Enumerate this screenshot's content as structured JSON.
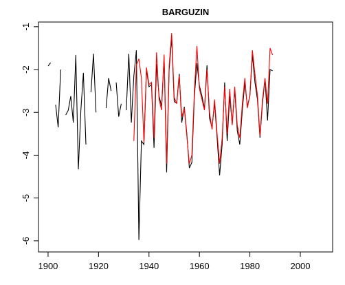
{
  "chart_data": {
    "type": "line",
    "title": "BARGUZIN",
    "x": [
      1900,
      1901,
      1902,
      1903,
      1904,
      1905,
      1906,
      1907,
      1908,
      1909,
      1910,
      1911,
      1912,
      1913,
      1914,
      1915,
      1916,
      1917,
      1918,
      1919,
      1920,
      1921,
      1922,
      1923,
      1924,
      1925,
      1926,
      1927,
      1928,
      1929,
      1930,
      1931,
      1932,
      1933,
      1934,
      1935,
      1936,
      1937,
      1938,
      1939,
      1940,
      1941,
      1942,
      1943,
      1944,
      1945,
      1946,
      1947,
      1948,
      1949,
      1950,
      1951,
      1952,
      1953,
      1954,
      1955,
      1956,
      1957,
      1958,
      1959,
      1960,
      1961,
      1962,
      1963,
      1964,
      1965,
      1966,
      1967,
      1968,
      1969,
      1970,
      1971,
      1972,
      1973,
      1974,
      1975,
      1976,
      1977,
      1978,
      1979,
      1980,
      1981,
      1982,
      1983,
      1984,
      1985,
      1986,
      1987,
      1988,
      1989
    ],
    "series": [
      {
        "color": "#000000",
        "values": [
          -1.92,
          -1.84,
          null,
          -2.82,
          -3.35,
          -2.0,
          null,
          -3.06,
          -2.95,
          -2.62,
          -3.24,
          -1.66,
          -4.33,
          -2.95,
          -2.08,
          -3.75,
          null,
          -2.53,
          -1.63,
          -3.0,
          null,
          null,
          null,
          -2.9,
          -2.2,
          -2.5,
          null,
          -2.3,
          -3.1,
          -2.8,
          null,
          -2.95,
          -1.63,
          -3.24,
          -2.15,
          -1.55,
          -5.98,
          -3.67,
          -3.75,
          -2.0,
          -2.4,
          -2.35,
          -3.83,
          -1.87,
          -2.62,
          -2.86,
          -1.7,
          -4.4,
          -2.0,
          -1.26,
          -2.75,
          -2.78,
          -2.1,
          -3.24,
          -2.87,
          -3.5,
          -4.3,
          -4.17,
          -2.62,
          -1.85,
          -2.38,
          -2.62,
          -2.91,
          -1.9,
          -3.14,
          -3.35,
          -2.78,
          -3.59,
          -4.47,
          -3.75,
          -2.3,
          -3.67,
          -2.62,
          -3.27,
          -2.46,
          -3.43,
          -3.75,
          -2.95,
          -2.3,
          -2.86,
          -2.62,
          -1.66,
          -2.3,
          -2.7,
          -3.59,
          -2.78,
          -2.22,
          -3.19,
          -2.0,
          -2.03
        ]
      },
      {
        "color": "#ff0000",
        "values": [
          null,
          null,
          null,
          null,
          null,
          null,
          null,
          null,
          null,
          null,
          null,
          null,
          null,
          null,
          null,
          null,
          null,
          null,
          null,
          null,
          null,
          null,
          null,
          null,
          null,
          null,
          null,
          null,
          null,
          null,
          null,
          null,
          null,
          null,
          -3.67,
          -1.9,
          -1.75,
          -2.2,
          -3.7,
          -1.95,
          -2.35,
          -2.3,
          -3.6,
          -1.6,
          -2.7,
          -2.95,
          -1.65,
          -4.2,
          -1.9,
          -1.15,
          -2.65,
          -2.8,
          -2.15,
          -3.1,
          -2.9,
          -3.55,
          -4.2,
          -4.0,
          -2.5,
          -1.45,
          -2.45,
          -2.7,
          -2.95,
          -2.0,
          -3.0,
          -3.4,
          -2.7,
          -3.5,
          -4.2,
          -3.6,
          -2.4,
          -3.5,
          -2.45,
          -3.3,
          -2.4,
          -3.3,
          -3.6,
          -2.8,
          -2.2,
          -2.9,
          -2.6,
          -1.55,
          -2.1,
          -2.6,
          -3.55,
          -2.7,
          -2.2,
          -2.8,
          -1.5,
          -1.66
        ]
      }
    ],
    "xlim": [
      1896.2,
      2012.8
    ],
    "xticks": [
      1900,
      1920,
      1940,
      1960,
      1980,
      2000
    ],
    "ylim": [
      -6.26,
      -0.89
    ],
    "yticks": [
      -6,
      -5,
      -4,
      -3,
      -2,
      -1
    ]
  }
}
